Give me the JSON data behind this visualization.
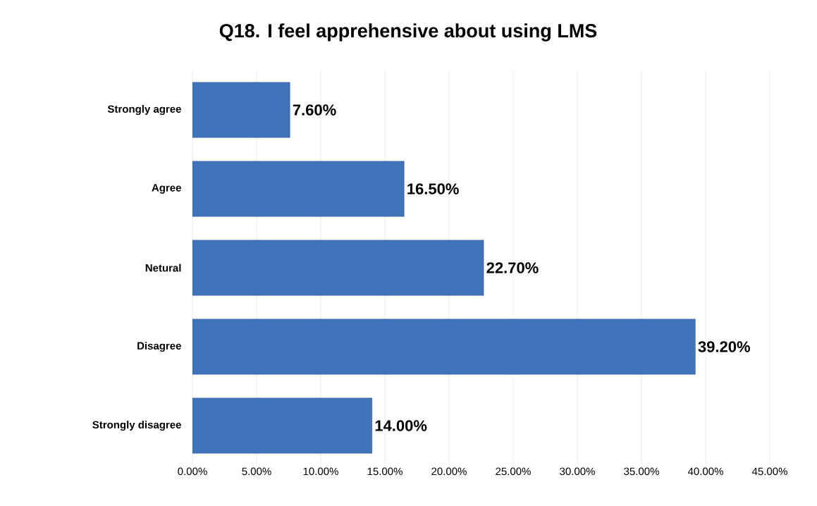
{
  "chart_data": {
    "type": "bar",
    "orientation": "horizontal",
    "title": "Q18. I feel apprehensive about using LMS",
    "categories": [
      "Strongly agree",
      "Agree",
      "Netural",
      "Disagree",
      "Strongly disagree"
    ],
    "values": [
      7.6,
      16.5,
      22.7,
      39.2,
      14.0
    ],
    "value_labels": [
      "7.60%",
      "16.50%",
      "22.70%",
      "39.20%",
      "14.00%"
    ],
    "color": "#3f74ba",
    "xlim": [
      0,
      45
    ],
    "xticks": [
      {
        "value": 0,
        "label": "0.00%"
      },
      {
        "value": 5,
        "label": "5.00%"
      },
      {
        "value": 10,
        "label": "10.00%"
      },
      {
        "value": 15,
        "label": "15.00%"
      },
      {
        "value": 20,
        "label": "20.00%"
      },
      {
        "value": 25,
        "label": "25.00%"
      },
      {
        "value": 30,
        "label": "30.00%"
      },
      {
        "value": 35,
        "label": "35.00%"
      },
      {
        "value": 40,
        "label": "40.00%"
      },
      {
        "value": 45,
        "label": "45.00%"
      }
    ],
    "grid": "x"
  }
}
